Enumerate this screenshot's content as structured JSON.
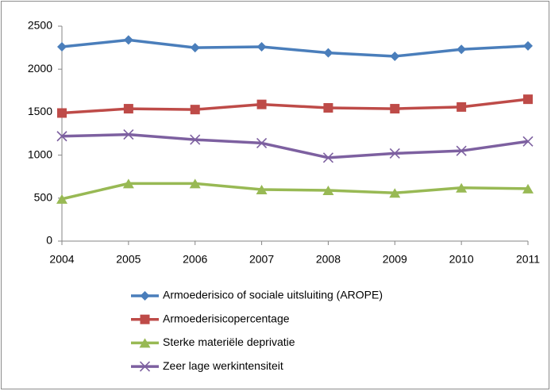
{
  "chart_data": {
    "type": "line",
    "categories": [
      "2004",
      "2005",
      "2006",
      "2007",
      "2008",
      "2009",
      "2010",
      "2011"
    ],
    "series": [
      {
        "name": "Armoederisico of sociale uitsluiting (AROPE)",
        "color": "#4a7ebb",
        "marker": "diamond",
        "values": [
          2260,
          2340,
          2250,
          2260,
          2190,
          2150,
          2230,
          2270
        ]
      },
      {
        "name": "Armoederisicopercentage",
        "color": "#be4b48",
        "marker": "square",
        "values": [
          1490,
          1540,
          1530,
          1590,
          1550,
          1540,
          1560,
          1650
        ]
      },
      {
        "name": "Sterke materiële deprivatie",
        "color": "#98b954",
        "marker": "triangle",
        "values": [
          490,
          670,
          670,
          600,
          590,
          560,
          620,
          610
        ]
      },
      {
        "name": "Zeer lage werkintensiteit",
        "color": "#7d60a0",
        "marker": "x",
        "values": [
          1220,
          1240,
          1180,
          1140,
          970,
          1020,
          1050,
          1160
        ]
      }
    ],
    "ylim": [
      0,
      2500
    ],
    "yticks": [
      0,
      500,
      1000,
      1500,
      2000,
      2500
    ],
    "grid": false,
    "legend": "bottom"
  }
}
